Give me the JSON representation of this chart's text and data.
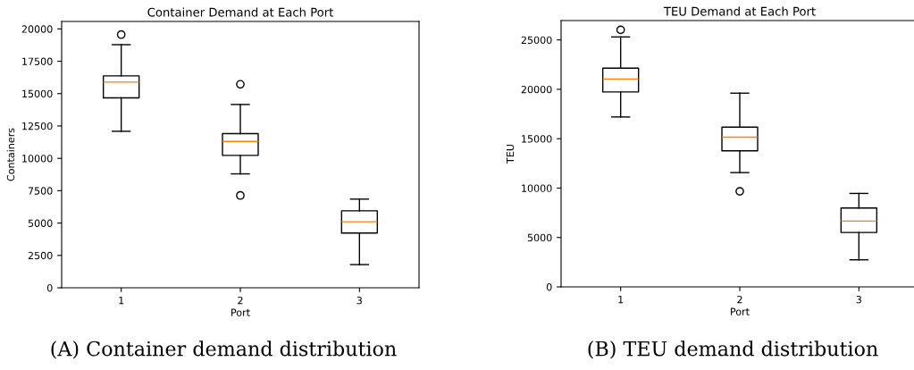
{
  "chart_data": [
    {
      "type": "box",
      "title": "Container Demand at Each Port",
      "xlabel": "Port",
      "ylabel": "Containers",
      "categories": [
        "1",
        "2",
        "3"
      ],
      "boxes": [
        {
          "low": 12090,
          "q1": 14670,
          "median": 15885,
          "q3": 16370,
          "high": 18780,
          "outliers": [
            19560
          ]
        },
        {
          "low": 8800,
          "q1": 10230,
          "median": 11310,
          "q3": 11910,
          "high": 14160,
          "outliers": [
            15720,
            7130
          ]
        },
        {
          "low": 1790,
          "q1": 4230,
          "median": 5100,
          "q3": 5950,
          "high": 6850
        }
      ],
      "ylim": [
        0,
        20575
      ],
      "yticks": [
        0,
        2500,
        5000,
        7500,
        10000,
        12500,
        15000,
        17500,
        20000
      ],
      "grid": false,
      "annotations": [
        "(A) Container demand distribution"
      ]
    },
    {
      "type": "box",
      "title": "TEU Demand at Each Port",
      "xlabel": "Port",
      "ylabel": "TEU",
      "categories": [
        "1",
        "2",
        "3"
      ],
      "boxes": [
        {
          "low": 17200,
          "q1": 19730,
          "median": 21050,
          "q3": 22140,
          "high": 25300,
          "outliers": [
            26020
          ]
        },
        {
          "low": 11570,
          "q1": 13770,
          "median": 15150,
          "q3": 16170,
          "high": 19610,
          "outliers": [
            9670
          ]
        },
        {
          "low": 2740,
          "q1": 5510,
          "median": 6660,
          "q3": 7980,
          "high": 9460
        }
      ],
      "ylim": [
        0,
        26960
      ],
      "yticks": [
        0,
        5000,
        10000,
        15000,
        20000,
        25000
      ],
      "grid": false,
      "annotations": [
        "(B) TEU demand distribution"
      ]
    }
  ]
}
